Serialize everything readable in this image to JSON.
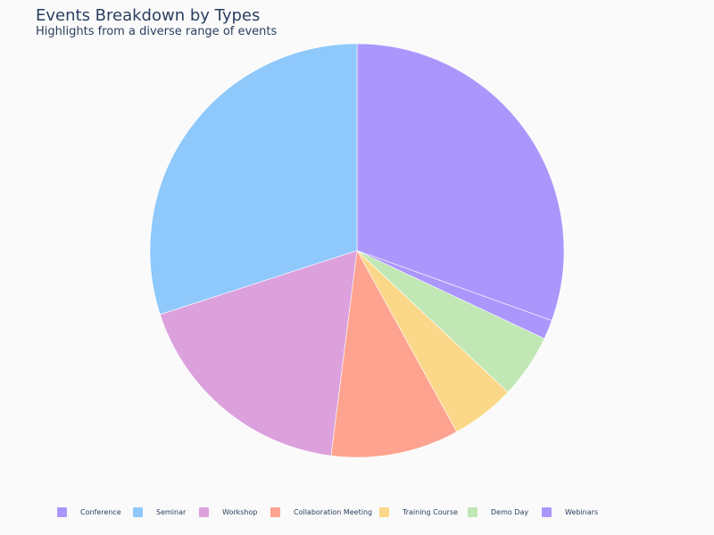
{
  "chart_data": {
    "type": "pie",
    "title": "Events Breakdown by Types",
    "subtitle": "Highlights from a diverse range of events",
    "slices": [
      {
        "label": "Conference",
        "value": 30.5,
        "color": "#ab97fc"
      },
      {
        "label": "Webinars",
        "value": 1.5,
        "color": "#ab97fc"
      },
      {
        "label": "Demo Day",
        "value": 5,
        "color": "#c0e7b4"
      },
      {
        "label": "Training Course",
        "value": 5,
        "color": "#fbd889"
      },
      {
        "label": "Collaboration Meeting",
        "value": 10,
        "color": "#fda38f"
      },
      {
        "label": "Workshop",
        "value": 18,
        "color": "#dca1dd"
      },
      {
        "label": "Seminar",
        "value": 30,
        "color": "#8fc8fb"
      }
    ],
    "legend": {
      "placement": "bottom",
      "items": [
        {
          "label": "Conference",
          "color": "#ab97fc"
        },
        {
          "label": "Seminar",
          "color": "#8fc8fb"
        },
        {
          "label": "Workshop",
          "color": "#dca1dd"
        },
        {
          "label": "Collaboration Meeting",
          "color": "#fda38f"
        },
        {
          "label": "Training Course",
          "color": "#fbd889"
        },
        {
          "label": "Demo Day",
          "color": "#c0e7b4"
        },
        {
          "label": "Webinars",
          "color": "#ab97fc"
        }
      ]
    }
  }
}
